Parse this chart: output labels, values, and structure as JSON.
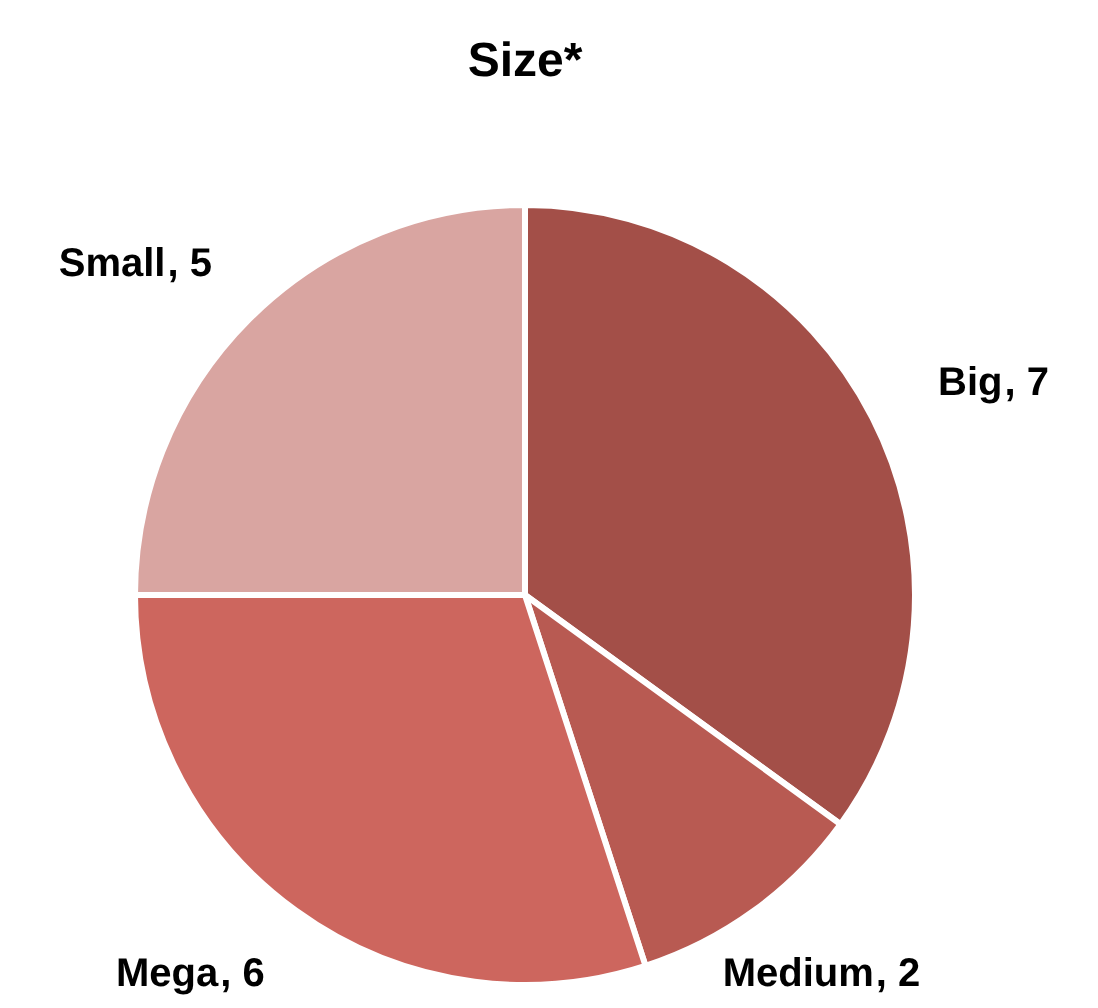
{
  "chart_data": {
    "type": "pie",
    "title": "Size*",
    "categories": [
      "Big",
      "Medium",
      "Mega",
      "Small"
    ],
    "values": [
      7,
      2,
      6,
      5
    ],
    "colors": [
      "#a34f48",
      "#b85a52",
      "#cd665e",
      "#d9a5a1"
    ],
    "value_labels": [
      ", 7",
      ", 2",
      ", 6",
      ", 5"
    ]
  }
}
